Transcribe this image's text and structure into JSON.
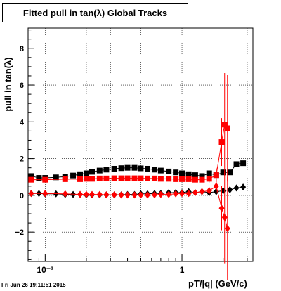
{
  "chart_data": {
    "type": "scatter",
    "title": "Fitted pull in tan(λ)  Global Tracks",
    "xlabel": "pT/|q| (GeV/c)",
    "ylabel": "pull in tan(λ)",
    "xscale": "log",
    "xlim": [
      0.075,
      3.3
    ],
    "ylim": [
      -3.6,
      9.1
    ],
    "xticks": [
      {
        "value": 0.1,
        "label": "10⁻¹"
      },
      {
        "value": 1,
        "label": "1"
      }
    ],
    "yticks": [
      -2,
      0,
      2,
      4,
      6,
      8
    ],
    "grid": true,
    "series": [
      {
        "color": "#000000",
        "marker": "square",
        "x": [
          0.079,
          0.09,
          0.1,
          0.12,
          0.14,
          0.16,
          0.18,
          0.2,
          0.22,
          0.25,
          0.28,
          0.32,
          0.36,
          0.4,
          0.45,
          0.5,
          0.56,
          0.63,
          0.7,
          0.8,
          0.9,
          1.0,
          1.12,
          1.25,
          1.4,
          1.58,
          1.78,
          2.0,
          2.24,
          2.5,
          2.8
        ],
        "y": [
          1.05,
          0.95,
          0.95,
          0.98,
          1.02,
          1.08,
          1.15,
          1.2,
          1.28,
          1.35,
          1.4,
          1.45,
          1.48,
          1.5,
          1.5,
          1.47,
          1.45,
          1.4,
          1.35,
          1.3,
          1.25,
          1.2,
          1.15,
          1.1,
          1.05,
          1.2,
          1.1,
          1.25,
          1.25,
          1.7,
          1.75
        ]
      },
      {
        "color": "#000000",
        "marker": "diamond",
        "x": [
          0.079,
          0.09,
          0.1,
          0.12,
          0.14,
          0.16,
          0.18,
          0.2,
          0.22,
          0.25,
          0.28,
          0.32,
          0.36,
          0.4,
          0.45,
          0.5,
          0.56,
          0.63,
          0.7,
          0.8,
          0.9,
          1.0,
          1.12,
          1.25,
          1.4,
          1.58,
          1.78,
          2.0,
          2.24,
          2.5,
          2.8
        ],
        "y": [
          0.1,
          0.1,
          0.08,
          0.08,
          0.05,
          0.05,
          0.05,
          0.03,
          0.03,
          0.03,
          0.03,
          0.03,
          0.03,
          0.05,
          0.05,
          0.08,
          0.08,
          0.1,
          0.1,
          0.15,
          0.15,
          0.15,
          0.2,
          0.15,
          0.2,
          0.15,
          0.2,
          0.25,
          0.3,
          0.4,
          0.45
        ]
      },
      {
        "color": "#ff0000",
        "marker": "square",
        "x": [
          0.079,
          0.1,
          0.14,
          0.18,
          0.2,
          0.22,
          0.25,
          0.28,
          0.32,
          0.36,
          0.4,
          0.45,
          0.5,
          0.56,
          0.63,
          0.7,
          0.8,
          0.9,
          1.0,
          1.12,
          1.25,
          1.4,
          1.58,
          1.78,
          1.95,
          2.05,
          2.15
        ],
        "y": [
          0.85,
          0.85,
          0.88,
          0.88,
          0.9,
          0.9,
          0.92,
          0.92,
          0.93,
          0.93,
          0.93,
          0.93,
          0.93,
          0.92,
          0.92,
          0.9,
          0.9,
          0.88,
          0.88,
          0.88,
          0.85,
          0.85,
          0.9,
          1.1,
          2.9,
          3.85,
          3.65
        ],
        "yerr": [
          0.05,
          0.05,
          0.05,
          0.05,
          0.05,
          0.05,
          0.05,
          0.05,
          0.05,
          0.05,
          0.05,
          0.05,
          0.05,
          0.05,
          0.05,
          0.05,
          0.05,
          0.05,
          0.05,
          0.05,
          0.05,
          0.1,
          0.2,
          0.4,
          1.3,
          2.8,
          2.9
        ]
      },
      {
        "color": "#ff0000",
        "marker": "diamond",
        "x": [
          0.079,
          0.1,
          0.14,
          0.18,
          0.2,
          0.22,
          0.25,
          0.28,
          0.32,
          0.36,
          0.4,
          0.45,
          0.5,
          0.56,
          0.63,
          0.7,
          0.8,
          0.9,
          1.0,
          1.12,
          1.25,
          1.4,
          1.58,
          1.78,
          1.95,
          2.05,
          2.15
        ],
        "y": [
          0.1,
          0.1,
          0.08,
          0.05,
          0.05,
          0.05,
          0.05,
          0.03,
          0.03,
          0.02,
          0.02,
          0.02,
          0.02,
          0.02,
          0.03,
          0.05,
          0.05,
          0.08,
          0.1,
          0.1,
          0.15,
          0.2,
          0.25,
          0.5,
          -0.7,
          -1.2,
          -1.8
        ],
        "yerr": [
          0.05,
          0.05,
          0.05,
          0.05,
          0.05,
          0.05,
          0.05,
          0.05,
          0.05,
          0.05,
          0.05,
          0.05,
          0.05,
          0.05,
          0.05,
          0.05,
          0.05,
          0.05,
          0.05,
          0.05,
          0.05,
          0.1,
          0.2,
          0.4,
          1.2,
          2.5,
          2.8
        ]
      }
    ]
  },
  "footer": {
    "timestamp": "Fri Jun 26 19:11:51 2015"
  }
}
